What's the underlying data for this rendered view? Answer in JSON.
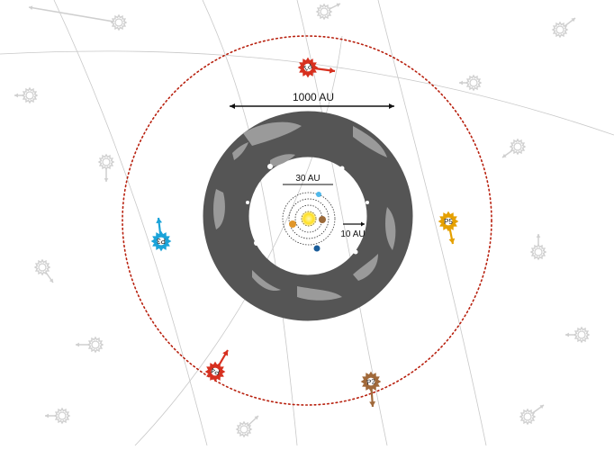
{
  "labels": {
    "scale_1000": "1000 AU",
    "scale_30": "30 AU",
    "scale_10": "10 AU"
  },
  "probes": [
    {
      "id": "p1",
      "label": "P1",
      "color": "#d7301f"
    },
    {
      "id": "p2",
      "label": "P2",
      "color": "#a0693a"
    },
    {
      "id": "p3",
      "label": "P3",
      "color": "#1aa3d9"
    },
    {
      "id": "p4",
      "label": "P4",
      "color": "#d7301f"
    },
    {
      "id": "p5",
      "label": "P5",
      "color": "#e5a000"
    }
  ],
  "colors": {
    "orbit": "#b8200e",
    "disk_dark": "#555555",
    "disk_light": "#9a9a9a",
    "background_star": "#cfcfcf",
    "tracks": "#c8c8c8",
    "sun": "#ffe020",
    "planet_gold": "#e0962a",
    "planet_brown": "#9b6a3a",
    "planet_lightblue": "#4fb8ea",
    "planet_blue": "#1a5d9a"
  }
}
